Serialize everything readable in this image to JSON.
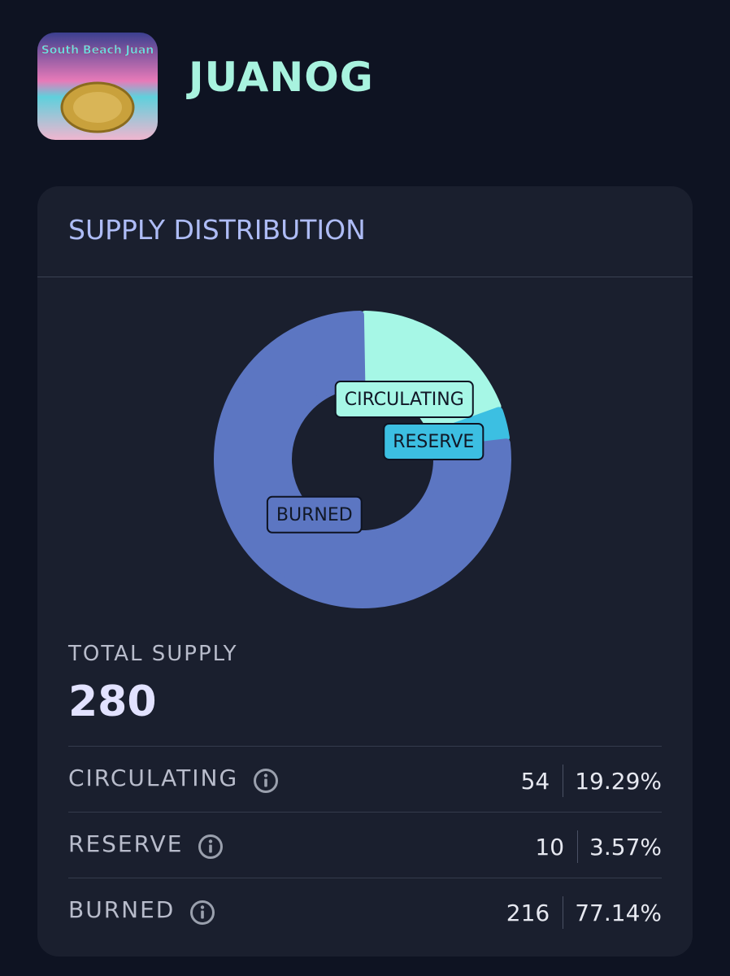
{
  "header": {
    "logo_text": "South Beach Juan",
    "name": "JUANOG"
  },
  "card_title": "SUPPLY DISTRIBUTION",
  "chart_data": {
    "type": "donut",
    "categories": [
      "CIRCULATING",
      "RESERVE",
      "BURNED"
    ],
    "values": [
      54,
      10,
      216
    ],
    "colors": [
      "#a6f7e6",
      "#3cbfe2",
      "#5c76c2"
    ]
  },
  "summary": {
    "label": "TOTAL SUPPLY",
    "value": 280,
    "percents": [
      "19.29%",
      "3.57%",
      "77.14%"
    ]
  }
}
